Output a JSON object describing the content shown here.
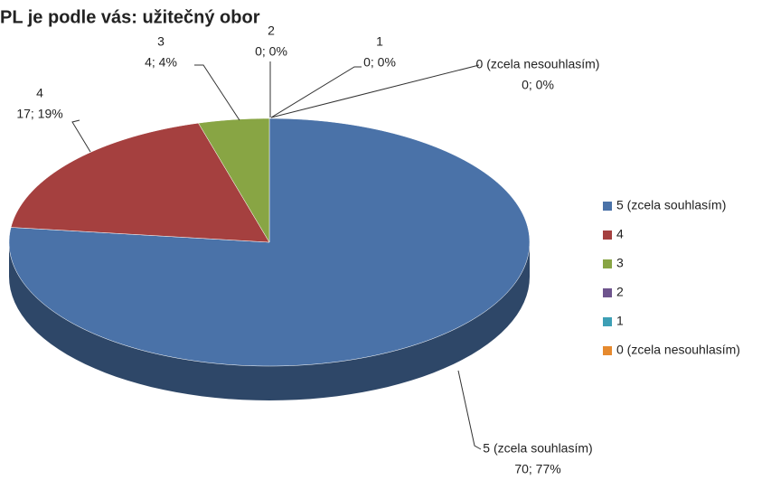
{
  "chart_data": {
    "type": "pie",
    "title": "PL je podle vás: užitečný obor",
    "categories": [
      "5 (zcela souhlasím)",
      "4",
      "3",
      "2",
      "1",
      "0 (zcela nesouhlasím)"
    ],
    "values": [
      70,
      17,
      4,
      0,
      0,
      0
    ],
    "value_labels": [
      "70; 77%",
      "17; 19%",
      "4; 4%",
      "0; 0%",
      "0; 0%",
      "0; 0%"
    ],
    "colors": [
      "#4a72a8",
      "#a5403f",
      "#88a544",
      "#6e548d",
      "#3d9fb5",
      "#e68a2e"
    ],
    "legend": "right"
  }
}
